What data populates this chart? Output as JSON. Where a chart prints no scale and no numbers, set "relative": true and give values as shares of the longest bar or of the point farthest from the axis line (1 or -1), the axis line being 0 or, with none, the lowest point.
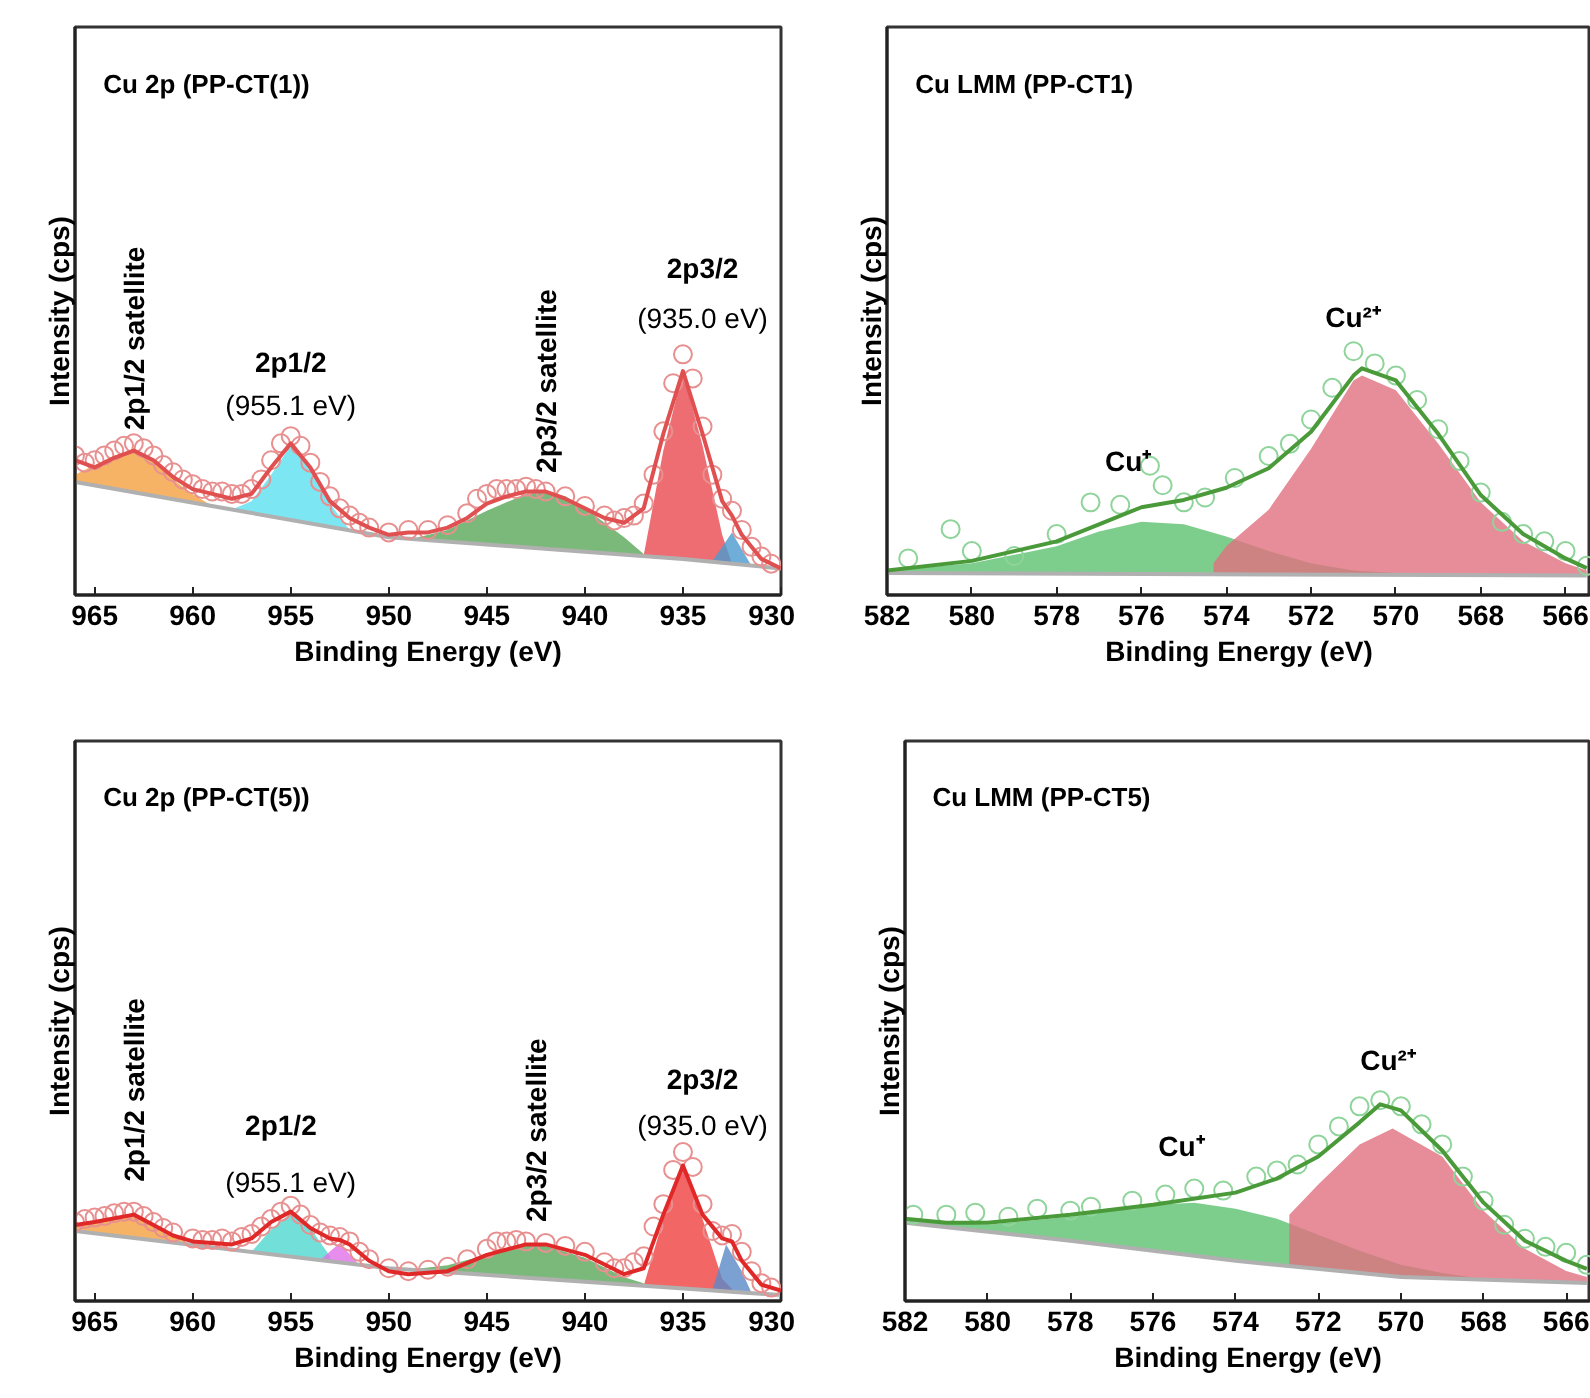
{
  "chart_data": [
    {
      "type": "line",
      "title": "Cu 2p (PP-CT(1))",
      "xlabel": "Binding Energy (eV)",
      "ylabel": "Intensity (cps)",
      "relative": true,
      "tick_labels": "x",
      "grid": false,
      "xlim": [
        966,
        930
      ],
      "xticks": [
        965,
        960,
        955,
        950,
        945,
        940,
        935,
        930
      ],
      "series": [
        {
          "type": "area",
          "color": "#f4a040",
          "x": [
            966,
            965,
            964,
            963,
            962,
            961,
            960,
            959
          ],
          "values": [
            0.5,
            0.54,
            0.58,
            0.6,
            0.56,
            0.48,
            0.42,
            0.37
          ]
        },
        {
          "type": "area",
          "color": "#5ce0f0",
          "x": [
            958,
            957,
            956,
            955,
            954,
            953,
            952
          ],
          "values": [
            0.355,
            0.39,
            0.5,
            0.62,
            0.52,
            0.38,
            0.27
          ]
        },
        {
          "type": "area",
          "color": "#5aa85a",
          "x": [
            949,
            947,
            945,
            943,
            942,
            941,
            940,
            939,
            938,
            937
          ],
          "values": [
            0.23,
            0.27,
            0.35,
            0.42,
            0.43,
            0.41,
            0.36,
            0.3,
            0.24,
            0.17
          ]
        },
        {
          "type": "area",
          "color": "#e84850",
          "x": [
            937,
            936,
            935,
            934,
            933,
            932.5
          ],
          "values": [
            0.165,
            0.6,
            0.93,
            0.62,
            0.25,
            0.13
          ]
        },
        {
          "type": "area",
          "color": "#4a9ad0",
          "x": [
            933.5,
            932.5,
            931.5
          ],
          "values": [
            0.14,
            0.26,
            0.12
          ]
        },
        {
          "type": "line",
          "color": "#b0b0b0",
          "x": [
            966,
            958,
            950,
            940,
            935,
            930
          ],
          "values": [
            0.47,
            0.355,
            0.24,
            0.18,
            0.15,
            0.11
          ]
        },
        {
          "type": "scatter",
          "marker": "circle",
          "color": "#e89090",
          "x": [
            966,
            965.5,
            965,
            964.5,
            964,
            963.5,
            963,
            962.5,
            962,
            961.5,
            961,
            960.5,
            960,
            959.5,
            959,
            958.5,
            958,
            957.5,
            957,
            956.5,
            956,
            955.5,
            955,
            954.5,
            954,
            953.5,
            953,
            952.5,
            952,
            951.5,
            951,
            950,
            949,
            948,
            947,
            946,
            945.5,
            945,
            944.5,
            944,
            943.5,
            943,
            942.5,
            942,
            941,
            940,
            939,
            938.5,
            938,
            937.5,
            937,
            936.5,
            936,
            935.5,
            935,
            934.5,
            934,
            933.5,
            933,
            932.5,
            932,
            931.5,
            931,
            930.5
          ],
          "values": [
            0.58,
            0.55,
            0.56,
            0.58,
            0.6,
            0.62,
            0.63,
            0.61,
            0.58,
            0.54,
            0.51,
            0.48,
            0.46,
            0.44,
            0.43,
            0.43,
            0.42,
            0.42,
            0.44,
            0.48,
            0.56,
            0.63,
            0.66,
            0.62,
            0.55,
            0.47,
            0.41,
            0.36,
            0.33,
            0.3,
            0.28,
            0.26,
            0.27,
            0.27,
            0.29,
            0.34,
            0.4,
            0.42,
            0.44,
            0.44,
            0.44,
            0.45,
            0.44,
            0.43,
            0.41,
            0.37,
            0.33,
            0.31,
            0.32,
            0.33,
            0.38,
            0.5,
            0.68,
            0.88,
            1.0,
            0.9,
            0.7,
            0.5,
            0.4,
            0.35,
            0.27,
            0.2,
            0.16,
            0.13
          ]
        },
        {
          "color": "#e05050",
          "x": [
            966,
            965,
            964,
            963,
            962,
            961,
            960,
            959,
            958,
            957,
            956,
            955,
            954,
            953,
            952,
            951,
            950,
            949,
            948,
            947,
            946,
            945,
            944,
            943,
            942,
            941,
            940,
            939,
            938,
            937,
            936,
            935,
            934,
            933,
            932.5,
            932,
            931,
            930
          ],
          "values": [
            0.56,
            0.53,
            0.57,
            0.6,
            0.56,
            0.49,
            0.44,
            0.42,
            0.4,
            0.42,
            0.53,
            0.63,
            0.53,
            0.39,
            0.32,
            0.28,
            0.25,
            0.26,
            0.26,
            0.28,
            0.32,
            0.38,
            0.41,
            0.43,
            0.43,
            0.4,
            0.36,
            0.32,
            0.3,
            0.36,
            0.67,
            0.93,
            0.67,
            0.39,
            0.33,
            0.25,
            0.15,
            0.11
          ]
        }
      ],
      "annotations": [
        "2p1/2 satellite",
        "2p1/2",
        "(955.1 eV)",
        "2p3/2 satellite",
        "2p3/2",
        "(935.0 eV)"
      ]
    },
    {
      "type": "line",
      "title": "Cu LMM (PP-CT1)",
      "xlabel": "Binding Energy (eV)",
      "ylabel": "Intensity (cps)",
      "relative": true,
      "tick_labels": "x",
      "grid": false,
      "xlim": [
        582,
        565.4
      ],
      "xticks": [
        582,
        580,
        578,
        576,
        574,
        572,
        570,
        568,
        566
      ],
      "series": [
        {
          "type": "area",
          "color": "#5cc070",
          "x": [
            582,
            580,
            578,
            577,
            576,
            575,
            574,
            573,
            572,
            571,
            570
          ],
          "values": [
            0.1,
            0.13,
            0.2,
            0.26,
            0.3,
            0.29,
            0.24,
            0.18,
            0.13,
            0.1,
            0.09
          ]
        },
        {
          "type": "area",
          "color": "#e07080",
          "x": [
            574.3,
            574,
            573,
            572,
            571,
            570.8,
            570,
            569,
            568,
            567,
            566,
            565.5
          ],
          "values": [
            0.13,
            0.2,
            0.35,
            0.6,
            0.88,
            0.9,
            0.84,
            0.62,
            0.38,
            0.22,
            0.13,
            0.1
          ]
        },
        {
          "type": "line",
          "color": "#b0b0b0",
          "x": [
            582,
            565.5
          ],
          "values": [
            0.09,
            0.08
          ]
        },
        {
          "type": "scatter",
          "marker": "circle",
          "color": "#8fd49a",
          "x": [
            581.5,
            580.5,
            580,
            579,
            578,
            577.2,
            576.5,
            575.8,
            575.5,
            575,
            574.5,
            573.8,
            573,
            572.5,
            572,
            571.5,
            571,
            570.5,
            570,
            569.5,
            569,
            568.5,
            568,
            567.5,
            567,
            566.5,
            566,
            565.5
          ],
          "values": [
            0.15,
            0.27,
            0.18,
            0.16,
            0.25,
            0.38,
            0.37,
            0.53,
            0.45,
            0.38,
            0.4,
            0.48,
            0.57,
            0.62,
            0.72,
            0.85,
            1.0,
            0.95,
            0.9,
            0.8,
            0.68,
            0.55,
            0.42,
            0.3,
            0.25,
            0.22,
            0.18,
            0.12
          ]
        },
        {
          "color": "#4a9a3a",
          "x": [
            582,
            580,
            578,
            577,
            576,
            575,
            574,
            573,
            572,
            571,
            570.8,
            570,
            569,
            568,
            567,
            566,
            565.5
          ],
          "values": [
            0.1,
            0.14,
            0.22,
            0.29,
            0.36,
            0.39,
            0.44,
            0.52,
            0.67,
            0.9,
            0.93,
            0.88,
            0.66,
            0.41,
            0.25,
            0.15,
            0.11
          ]
        }
      ],
      "annotations": [
        "Cu⁺",
        "Cu²⁺"
      ]
    },
    {
      "type": "line",
      "title": "Cu 2p (PP-CT(5))",
      "xlabel": "Binding Energy (eV)",
      "ylabel": "Intensity (cps)",
      "relative": true,
      "tick_labels": "x",
      "grid": false,
      "xlim": [
        966,
        930
      ],
      "xticks": [
        965,
        960,
        955,
        950,
        945,
        940,
        935,
        930
      ],
      "series": [
        {
          "type": "area",
          "color": "#f4a040",
          "x": [
            966,
            965,
            964,
            963,
            962,
            961,
            960
          ],
          "values": [
            0.5,
            0.53,
            0.56,
            0.57,
            0.5,
            0.44,
            0.375
          ]
        },
        {
          "type": "area",
          "color": "#4fd8d0",
          "x": [
            957,
            956,
            955,
            954,
            953
          ],
          "values": [
            0.33,
            0.48,
            0.59,
            0.49,
            0.3
          ]
        },
        {
          "type": "area",
          "color": "#e070e8",
          "x": [
            953.5,
            952.5,
            951.5
          ],
          "values": [
            0.275,
            0.39,
            0.24
          ]
        },
        {
          "type": "area",
          "color": "#5aa85a",
          "x": [
            949,
            947,
            945,
            943,
            942,
            940,
            938,
            937
          ],
          "values": [
            0.21,
            0.24,
            0.31,
            0.37,
            0.37,
            0.29,
            0.16,
            0.12
          ]
        },
        {
          "type": "area",
          "color": "#f04040",
          "x": [
            937,
            936,
            935,
            934,
            933,
            932.5
          ],
          "values": [
            0.103,
            0.55,
            0.9,
            0.55,
            0.15,
            0.08
          ]
        },
        {
          "type": "area",
          "color": "#5a8ac8",
          "x": [
            933.5,
            932.8,
            932,
            931.5
          ],
          "values": [
            0.071,
            0.38,
            0.2,
            0.053
          ]
        },
        {
          "type": "line",
          "color": "#b0b0b0",
          "x": [
            966,
            950,
            940,
            930
          ],
          "values": [
            0.47,
            0.22,
            0.13,
            0.04
          ]
        },
        {
          "type": "scatter",
          "marker": "circle",
          "color": "#e89090",
          "x": [
            966,
            965.5,
            965,
            964.5,
            964,
            963.5,
            963,
            962.5,
            962,
            961.5,
            961,
            960,
            959.5,
            959,
            958.5,
            958,
            957.5,
            957,
            956.5,
            956,
            955.5,
            955,
            954.5,
            954,
            953.5,
            953,
            952.5,
            952,
            951.5,
            951,
            950,
            949,
            948,
            947,
            946,
            945,
            944.5,
            944,
            943.5,
            943,
            942,
            941,
            940,
            939,
            938.5,
            938,
            937.5,
            937,
            936.5,
            936,
            935.5,
            935,
            934.5,
            934,
            933.5,
            933,
            932.5,
            932,
            931.5,
            931,
            930.5
          ],
          "values": [
            0.53,
            0.55,
            0.56,
            0.57,
            0.59,
            0.6,
            0.6,
            0.57,
            0.53,
            0.49,
            0.46,
            0.42,
            0.41,
            0.41,
            0.42,
            0.4,
            0.43,
            0.45,
            0.5,
            0.55,
            0.6,
            0.64,
            0.58,
            0.51,
            0.46,
            0.44,
            0.43,
            0.4,
            0.33,
            0.28,
            0.22,
            0.2,
            0.21,
            0.23,
            0.28,
            0.35,
            0.4,
            0.4,
            0.41,
            0.4,
            0.39,
            0.37,
            0.33,
            0.26,
            0.22,
            0.22,
            0.26,
            0.3,
            0.5,
            0.65,
            0.88,
            1.0,
            0.9,
            0.65,
            0.47,
            0.44,
            0.45,
            0.33,
            0.2,
            0.12,
            0.09
          ]
        },
        {
          "color": "#e02828",
          "x": [
            966,
            965,
            963,
            962,
            961,
            960,
            958,
            957,
            956,
            955,
            954,
            953,
            952.5,
            952,
            951,
            950,
            949,
            947,
            945,
            943,
            942,
            940,
            938,
            937,
            936,
            935,
            934,
            933,
            932.5,
            932,
            931,
            930
          ],
          "values": [
            0.51,
            0.53,
            0.58,
            0.51,
            0.44,
            0.4,
            0.38,
            0.42,
            0.53,
            0.6,
            0.49,
            0.42,
            0.41,
            0.38,
            0.27,
            0.2,
            0.18,
            0.2,
            0.31,
            0.38,
            0.38,
            0.31,
            0.18,
            0.22,
            0.58,
            0.91,
            0.58,
            0.42,
            0.4,
            0.27,
            0.11,
            0.07
          ]
        }
      ],
      "annotations": [
        "2p1/2 satellite",
        "2p1/2",
        "(955.1 eV)",
        "2p3/2 satellite",
        "2p3/2",
        "(935.0 eV)"
      ]
    },
    {
      "type": "line",
      "title": "Cu LMM (PP-CT5)",
      "xlabel": "Binding Energy (eV)",
      "ylabel": "Intensity (cps)",
      "relative": true,
      "tick_labels": "x",
      "grid": false,
      "xlim": [
        582,
        565.4
      ],
      "xticks": [
        582,
        580,
        578,
        576,
        574,
        572,
        570,
        568,
        566
      ],
      "series": [
        {
          "type": "area",
          "color": "#5cc070",
          "x": [
            582,
            580,
            578,
            576,
            575,
            574,
            573,
            572,
            571,
            570,
            569,
            568
          ],
          "values": [
            0.4,
            0.38,
            0.42,
            0.48,
            0.49,
            0.46,
            0.41,
            0.33,
            0.25,
            0.18,
            0.14,
            0.11
          ]
        },
        {
          "type": "area",
          "color": "#e07080",
          "x": [
            572.7,
            572,
            571,
            570.2,
            569,
            568,
            567,
            566,
            565.5
          ],
          "values": [
            0.43,
            0.58,
            0.78,
            0.86,
            0.72,
            0.45,
            0.26,
            0.15,
            0.12
          ]
        },
        {
          "type": "line",
          "color": "#b0b0b0",
          "x": [
            582,
            578,
            574,
            570,
            565.5
          ],
          "values": [
            0.39,
            0.3,
            0.2,
            0.12,
            0.09
          ]
        },
        {
          "type": "scatter",
          "marker": "circle",
          "color": "#8fd49a",
          "x": [
            581.8,
            581,
            580.3,
            579.5,
            578.8,
            578,
            577.5,
            576.5,
            575.7,
            575,
            574.3,
            573.5,
            573,
            572.5,
            572,
            571.5,
            571,
            570.5,
            570,
            569.5,
            569,
            568.5,
            568,
            567.5,
            567,
            566.5,
            566,
            565.5
          ],
          "values": [
            0.43,
            0.43,
            0.44,
            0.42,
            0.46,
            0.45,
            0.47,
            0.5,
            0.53,
            0.56,
            0.55,
            0.62,
            0.65,
            0.68,
            0.78,
            0.87,
            0.97,
            1.0,
            0.97,
            0.88,
            0.78,
            0.62,
            0.5,
            0.38,
            0.31,
            0.27,
            0.24,
            0.18
          ]
        },
        {
          "color": "#4a9a3a",
          "x": [
            582,
            581,
            580,
            578,
            576,
            574,
            573,
            572,
            571,
            570.5,
            570,
            569,
            568,
            567,
            566,
            565.5
          ],
          "values": [
            0.41,
            0.39,
            0.39,
            0.43,
            0.48,
            0.54,
            0.61,
            0.72,
            0.89,
            0.98,
            0.95,
            0.75,
            0.49,
            0.3,
            0.2,
            0.16
          ]
        }
      ],
      "annotations": [
        "Cu⁺",
        "Cu²⁺"
      ]
    }
  ]
}
